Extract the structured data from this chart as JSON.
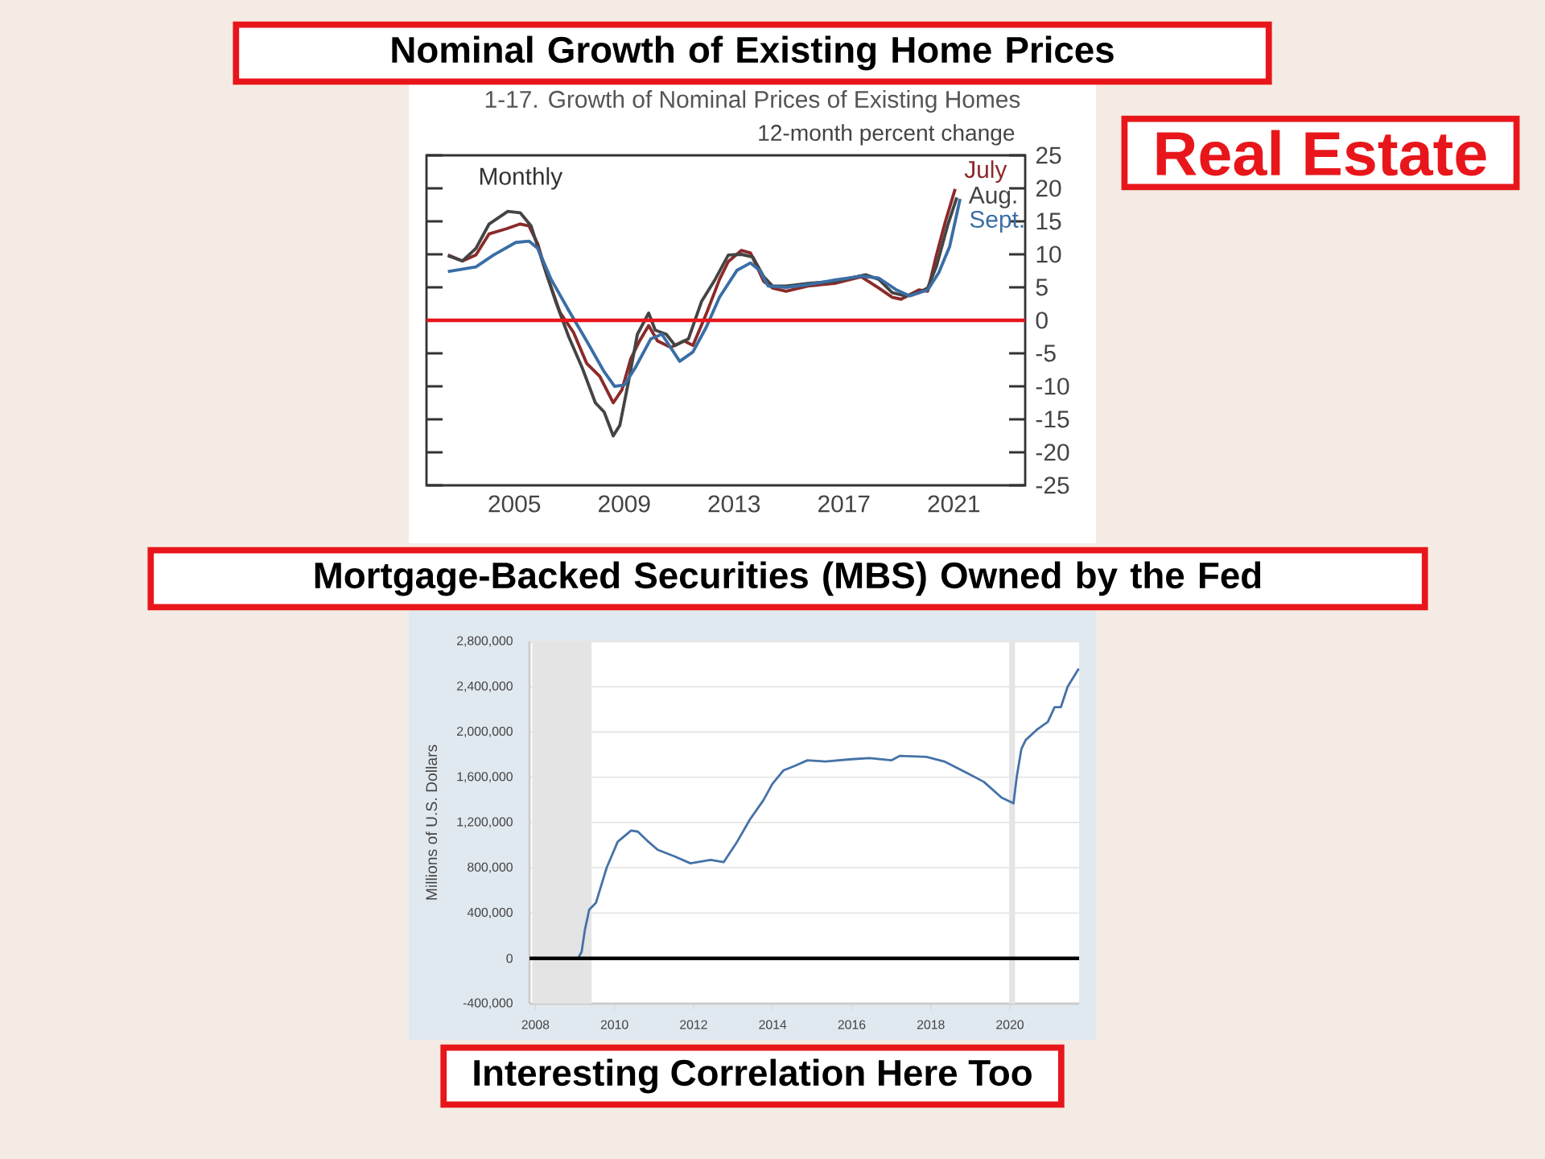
{
  "chart_data": [
    {
      "type": "line",
      "title": "Nominal Growth of Existing Home Prices",
      "subtitle": "1-17. Growth of Nominal Prices of Existing Homes",
      "ylabel": "12-month percent change",
      "series": [
        {
          "color": "#8b2a2a",
          "x": [
            2003.08,
            2003.61,
            2004.1,
            2004.58,
            2005.23,
            2005.71,
            2006.03,
            2006.35,
            2006.68,
            2007.16,
            2007.65,
            2008.13,
            2008.61,
            2009.1,
            2009.42,
            2009.74,
            2010.06,
            2010.39,
            2010.71,
            2011.19,
            2011.68,
            2012.0,
            2012.48,
            2012.97,
            2013.29,
            2013.77,
            2014.1,
            2014.58,
            2014.9,
            2015.39,
            2016.19,
            2017.16,
            2018.13,
            2018.77,
            2019.26,
            2019.58,
            2020.23,
            2020.55,
            2020.87,
            2021.19,
            2021.55
          ],
          "values": [
            9.9,
            9.0,
            9.9,
            13.1,
            13.9,
            14.6,
            14.3,
            11.6,
            6.9,
            1.2,
            -1.8,
            -6.5,
            -8.5,
            -12.5,
            -10.5,
            -5.8,
            -3.1,
            -0.8,
            -3.1,
            -4.1,
            -3.1,
            -3.8,
            0.9,
            6.2,
            8.9,
            10.6,
            10.2,
            5.9,
            4.9,
            4.4,
            5.2,
            5.6,
            6.6,
            4.9,
            3.5,
            3.2,
            4.6,
            4.4,
            9.9,
            14.9,
            19.9
          ]
        },
        {
          "color": "#444444",
          "x": [
            2003.08,
            2003.61,
            2004.1,
            2004.58,
            2005.26,
            2005.71,
            2006.11,
            2006.52,
            2007.0,
            2007.48,
            2007.97,
            2008.45,
            2008.77,
            2009.1,
            2009.34,
            2009.66,
            2009.98,
            2010.39,
            2010.63,
            2011.03,
            2011.35,
            2011.84,
            2012.32,
            2012.81,
            2013.29,
            2013.77,
            2014.18,
            2014.58,
            2014.9,
            2015.39,
            2016.19,
            2017.16,
            2018.29,
            2018.77,
            2019.26,
            2019.74,
            2020.23,
            2020.55,
            2020.87,
            2021.27,
            2021.61
          ],
          "values": [
            9.8,
            9.0,
            10.9,
            14.6,
            16.5,
            16.3,
            14.3,
            8.9,
            2.9,
            -2.5,
            -7.2,
            -12.5,
            -13.9,
            -17.5,
            -15.9,
            -9.2,
            -2.1,
            1.1,
            -1.5,
            -2.1,
            -3.8,
            -2.8,
            2.9,
            6.2,
            9.9,
            10.0,
            9.6,
            6.6,
            5.2,
            5.2,
            5.6,
            5.9,
            6.9,
            6.2,
            4.2,
            3.7,
            4.2,
            4.9,
            8.2,
            14.3,
            18.6
          ]
        },
        {
          "color": "#3a6ea5",
          "x": [
            2003.08,
            2004.1,
            2004.74,
            2005.55,
            2006.03,
            2006.35,
            2006.84,
            2007.48,
            2008.13,
            2008.77,
            2009.15,
            2009.5,
            2009.9,
            2010.47,
            2010.87,
            2011.52,
            2012.0,
            2012.48,
            2012.97,
            2013.61,
            2014.1,
            2014.42,
            2014.74,
            2015.39,
            2016.19,
            2017.16,
            2018.13,
            2018.77,
            2019.42,
            2019.9,
            2020.55,
            2020.95,
            2021.35,
            2021.73
          ],
          "values": [
            7.4,
            8.1,
            9.9,
            11.8,
            12.0,
            10.9,
            6.2,
            1.5,
            -3.1,
            -7.8,
            -10.0,
            -9.8,
            -7.2,
            -2.8,
            -2.1,
            -6.2,
            -4.8,
            -1.1,
            3.5,
            7.6,
            8.7,
            7.6,
            5.2,
            5.0,
            5.4,
            6.1,
            6.7,
            6.4,
            4.6,
            3.7,
            4.6,
            7.2,
            11.2,
            18.4
          ]
        }
      ],
      "xlim": [
        2002.3,
        2024.1
      ],
      "ylim": [
        -25,
        25
      ],
      "xticks": [
        {
          "value": 2005.5,
          "label": "2005"
        },
        {
          "value": 2009.5,
          "label": "2009"
        },
        {
          "value": 2013.5,
          "label": "2013"
        },
        {
          "value": 2017.5,
          "label": "2017"
        },
        {
          "value": 2021.5,
          "label": "2021"
        }
      ],
      "yticks": [
        -25,
        -20,
        -15,
        -10,
        -5,
        0,
        5,
        10,
        15,
        20,
        25
      ],
      "ref_lines": [
        {
          "axis": "y",
          "value": 0,
          "color": "#e8161b"
        }
      ],
      "annotations": [
        "Monthly",
        {
          "text": "July",
          "x": 2021.55,
          "y": 19.9
        },
        {
          "text": "Aug.",
          "x": 2021.61,
          "y": 18.6
        },
        {
          "text": "Sept.",
          "x": 2021.73,
          "y": 18.4
        },
        "Real Estate"
      ]
    },
    {
      "type": "line",
      "title": "Mortgage-Backed Securities (MBS) Owned by the Fed",
      "ylabel": "Millions of U.S. Dollars",
      "series": [
        {
          "color": "#4572a7",
          "x": [
            2007.86,
            2009.08,
            2009.17,
            2009.25,
            2009.36,
            2009.53,
            2009.8,
            2010.08,
            2010.42,
            2010.59,
            2010.86,
            2011.09,
            2011.53,
            2011.92,
            2012.43,
            2012.76,
            2013.1,
            2013.43,
            2013.77,
            2013.99,
            2014.27,
            2014.55,
            2014.88,
            2015.33,
            2016.0,
            2016.45,
            2017.0,
            2017.22,
            2017.89,
            2018.34,
            2018.9,
            2019.34,
            2019.79,
            2020.09,
            2020.18,
            2020.29,
            2020.4,
            2020.68,
            2020.96,
            2021.13,
            2021.29,
            2021.46,
            2021.74
          ],
          "values": [
            0,
            0,
            60000,
            250000,
            430000,
            490000,
            800000,
            1030000,
            1130000,
            1120000,
            1030000,
            960000,
            900000,
            840000,
            870000,
            850000,
            1030000,
            1230000,
            1400000,
            1540000,
            1660000,
            1700000,
            1750000,
            1740000,
            1760000,
            1770000,
            1750000,
            1790000,
            1780000,
            1740000,
            1640000,
            1560000,
            1420000,
            1370000,
            1620000,
            1850000,
            1930000,
            2020000,
            2090000,
            2220000,
            2220000,
            2400000,
            2560000
          ]
        }
      ],
      "xlim": [
        2007.85,
        2021.75
      ],
      "ylim": [
        -400000,
        2800000
      ],
      "xticks": [
        2008,
        2010,
        2012,
        2014,
        2016,
        2018,
        2020
      ],
      "yticks": [
        {
          "value": -400000,
          "label": "-400,000"
        },
        {
          "value": 0,
          "label": "0"
        },
        {
          "value": 400000,
          "label": "400,000"
        },
        {
          "value": 800000,
          "label": "800,000"
        },
        {
          "value": 1200000,
          "label": "1,200,000"
        },
        {
          "value": 1600000,
          "label": "1,600,000"
        },
        {
          "value": 2000000,
          "label": "2,000,000"
        },
        {
          "value": 2400000,
          "label": "2,400,000"
        },
        {
          "value": 2800000,
          "label": "2,800,000"
        }
      ],
      "grid": "y",
      "bands": [
        {
          "axis": "x",
          "from": 2007.92,
          "to": 2009.42,
          "color": "#e4e4e4"
        },
        {
          "axis": "x",
          "from": 2019.98,
          "to": 2020.13,
          "color": "#e4e4e4"
        }
      ],
      "ref_lines": [
        {
          "axis": "y",
          "value": 0,
          "color": "#000000"
        }
      ],
      "annotations": [
        "Interesting Correlation Here Too"
      ]
    }
  ]
}
